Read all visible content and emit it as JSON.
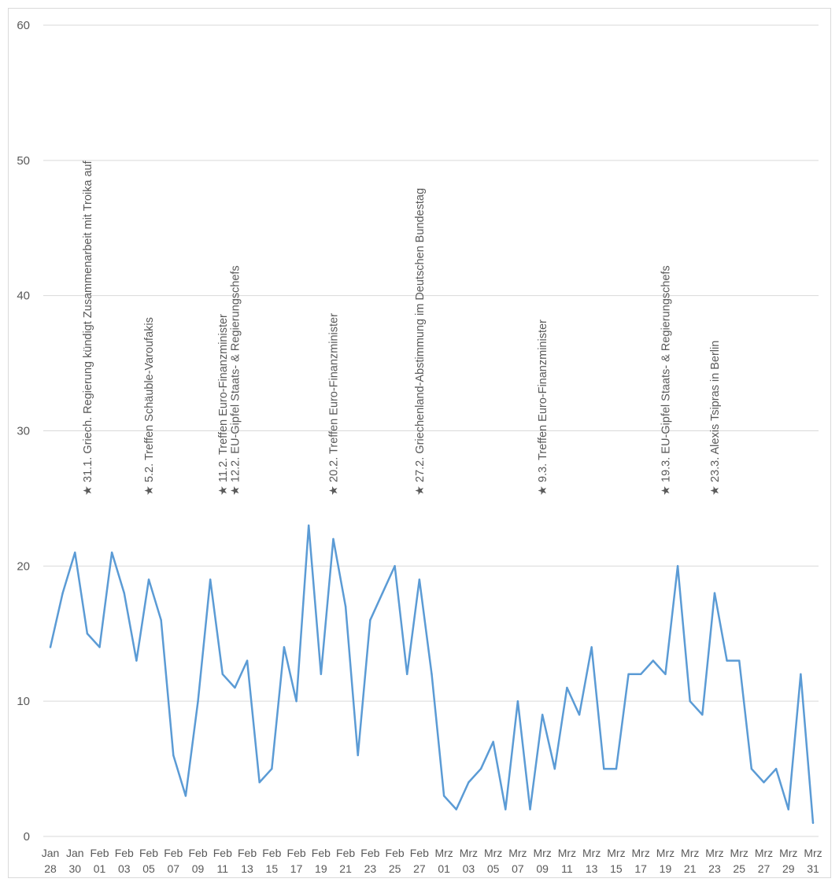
{
  "chart_data": {
    "type": "line",
    "title": "",
    "xlabel": "",
    "ylabel": "",
    "ylim": [
      0,
      60
    ],
    "yticks": [
      0,
      10,
      20,
      30,
      40,
      50,
      60
    ],
    "grid": true,
    "legend": "none",
    "line_color": "#5b9bd5",
    "x_tick_labels": [
      [
        "Jan",
        "28"
      ],
      [
        "Jan",
        "30"
      ],
      [
        "Feb",
        "01"
      ],
      [
        "Feb",
        "03"
      ],
      [
        "Feb",
        "05"
      ],
      [
        "Feb",
        "07"
      ],
      [
        "Feb",
        "09"
      ],
      [
        "Feb",
        "11"
      ],
      [
        "Feb",
        "13"
      ],
      [
        "Feb",
        "15"
      ],
      [
        "Feb",
        "17"
      ],
      [
        "Feb",
        "19"
      ],
      [
        "Feb",
        "21"
      ],
      [
        "Feb",
        "23"
      ],
      [
        "Feb",
        "25"
      ],
      [
        "Feb",
        "27"
      ],
      [
        "Mrz",
        "01"
      ],
      [
        "Mrz",
        "03"
      ],
      [
        "Mrz",
        "05"
      ],
      [
        "Mrz",
        "07"
      ],
      [
        "Mrz",
        "09"
      ],
      [
        "Mrz",
        "11"
      ],
      [
        "Mrz",
        "13"
      ],
      [
        "Mrz",
        "15"
      ],
      [
        "Mrz",
        "17"
      ],
      [
        "Mrz",
        "19"
      ],
      [
        "Mrz",
        "21"
      ],
      [
        "Mrz",
        "23"
      ],
      [
        "Mrz",
        "25"
      ],
      [
        "Mrz",
        "27"
      ],
      [
        "Mrz",
        "29"
      ],
      [
        "Mrz",
        "31"
      ]
    ],
    "x": [
      "2015-01-28",
      "2015-01-29",
      "2015-01-30",
      "2015-01-31",
      "2015-02-01",
      "2015-02-02",
      "2015-02-03",
      "2015-02-04",
      "2015-02-05",
      "2015-02-06",
      "2015-02-07",
      "2015-02-08",
      "2015-02-09",
      "2015-02-10",
      "2015-02-11",
      "2015-02-12",
      "2015-02-13",
      "2015-02-14",
      "2015-02-15",
      "2015-02-16",
      "2015-02-17",
      "2015-02-18",
      "2015-02-19",
      "2015-02-20",
      "2015-02-21",
      "2015-02-22",
      "2015-02-23",
      "2015-02-24",
      "2015-02-25",
      "2015-02-26",
      "2015-02-27",
      "2015-02-28",
      "2015-03-01",
      "2015-03-02",
      "2015-03-03",
      "2015-03-04",
      "2015-03-05",
      "2015-03-06",
      "2015-03-07",
      "2015-03-08",
      "2015-03-09",
      "2015-03-10",
      "2015-03-11",
      "2015-03-12",
      "2015-03-13",
      "2015-03-14",
      "2015-03-15",
      "2015-03-16",
      "2015-03-17",
      "2015-03-18",
      "2015-03-19",
      "2015-03-20",
      "2015-03-21",
      "2015-03-22",
      "2015-03-23",
      "2015-03-24",
      "2015-03-25",
      "2015-03-26",
      "2015-03-27",
      "2015-03-28",
      "2015-03-29",
      "2015-03-30",
      "2015-03-31"
    ],
    "values": [
      14,
      18,
      21,
      15,
      14,
      21,
      18,
      13,
      19,
      16,
      6,
      3,
      10,
      19,
      12,
      11,
      13,
      4,
      5,
      14,
      10,
      23,
      12,
      22,
      17,
      6,
      16,
      18,
      20,
      12,
      19,
      12,
      3,
      2,
      4,
      5,
      7,
      2,
      10,
      2,
      9,
      5,
      11,
      9,
      14,
      5,
      5,
      12,
      12,
      13,
      12,
      20,
      10,
      9,
      18,
      13,
      13,
      5,
      4,
      5,
      2,
      12,
      1
    ],
    "annotations": [
      {
        "date": "2015-01-31",
        "text": "★ 31.1. Griech. Regierung kündigt Zusammenarbeit mit Troika auf"
      },
      {
        "date": "2015-02-05",
        "text": "★ 5.2. Treffen Schäuble-Varoufakis"
      },
      {
        "date": "2015-02-11",
        "text": "★ 11.2. Treffen Euro-Finanzminister"
      },
      {
        "date": "2015-02-12",
        "text": "★ 12.2. EU-Gipfel Staats- & Regierungschefs"
      },
      {
        "date": "2015-02-20",
        "text": "★ 20.2. Treffen Euro-Finanzminister"
      },
      {
        "date": "2015-02-27",
        "text": "★ 27.2. Griechenland-Abstimmung im Deutschen Bundestag"
      },
      {
        "date": "2015-03-09",
        "text": "★ 9.3. Treffen Euro-Finanzminister"
      },
      {
        "date": "2015-03-19",
        "text": "★ 19.3. EU-Gipfel Staats- & Regierungschefs"
      },
      {
        "date": "2015-03-23",
        "text": "★ 23.3. Alexis Tsipras in Berlin"
      }
    ]
  }
}
